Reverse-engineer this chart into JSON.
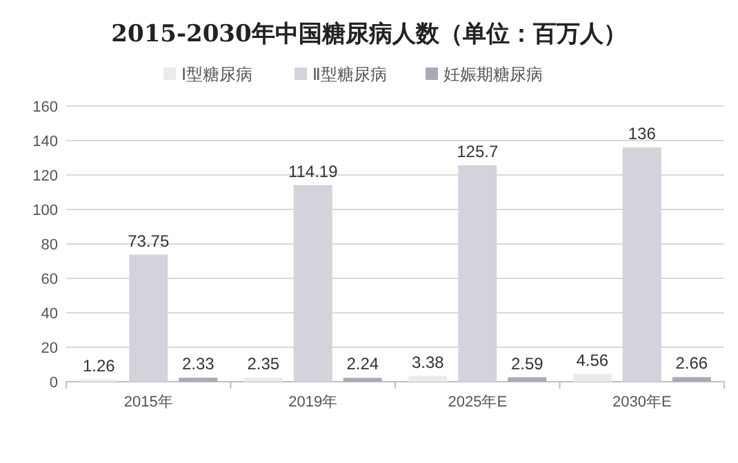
{
  "chart_data": {
    "type": "bar",
    "title": "2015-2030年中国糖尿病人数（单位：百万人）",
    "categories": [
      "2015年",
      "2019年",
      "2025年E",
      "2030年E"
    ],
    "series": [
      {
        "name": "Ⅰ型糖尿病",
        "color": "#ebebeb",
        "values": [
          1.26,
          2.35,
          3.38,
          4.56
        ]
      },
      {
        "name": "Ⅱ型糖尿病",
        "color": "#d3d3dc",
        "values": [
          73.75,
          114.19,
          125.7,
          136
        ]
      },
      {
        "name": "妊娠期糖尿病",
        "color": "#a9a9b8",
        "values": [
          2.33,
          2.24,
          2.59,
          2.66
        ]
      }
    ],
    "ylim": [
      0,
      160
    ],
    "yticks": [
      0,
      20,
      40,
      60,
      80,
      100,
      120,
      140,
      160
    ],
    "grid": "y",
    "legend": "top",
    "data_labels": true
  }
}
